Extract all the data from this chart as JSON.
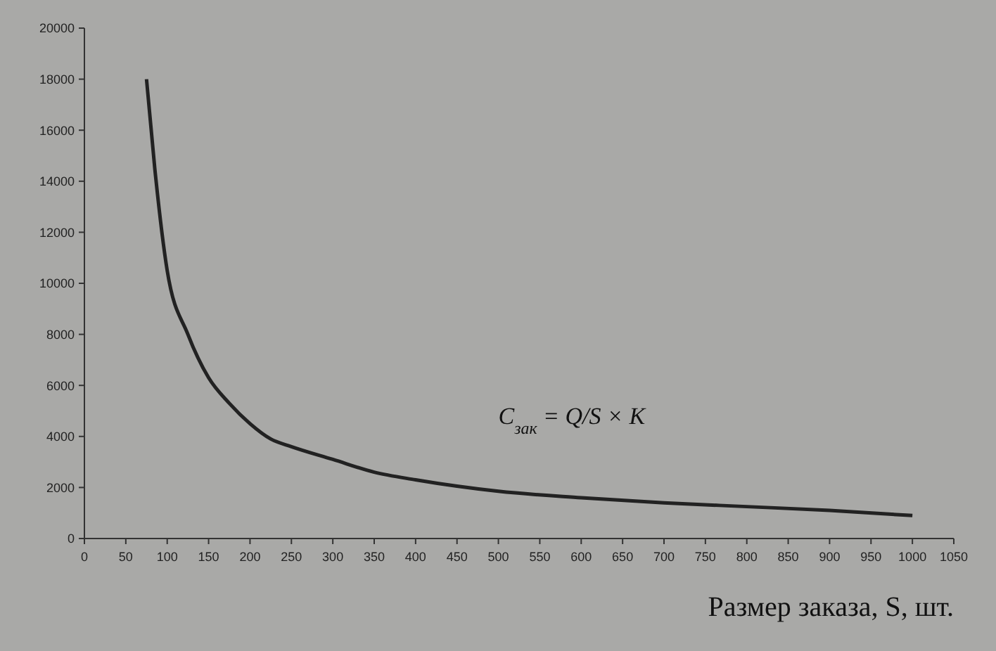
{
  "chart_data": {
    "type": "line",
    "xlabel": "Размер заказа, S, шт.",
    "annotations": [
      "C$_{зак}$ = Q/S × K"
    ],
    "x": [
      75,
      85,
      100,
      125,
      150,
      175,
      200,
      225,
      250,
      300,
      350,
      400,
      450,
      500,
      600,
      700,
      800,
      900,
      1000
    ],
    "series": [
      {
        "color": "#222222",
        "values": [
          18000,
          14500,
          10500,
          8000,
          6300,
          5300,
          4500,
          3900,
          3600,
          3100,
          2600,
          2300,
          2050,
          1850,
          1600,
          1400,
          1250,
          1100,
          900
        ]
      }
    ],
    "xlim": [
      0,
      1050
    ],
    "xticks": [
      0,
      50,
      100,
      150,
      200,
      250,
      300,
      350,
      400,
      450,
      500,
      550,
      600,
      650,
      700,
      750,
      800,
      850,
      900,
      950,
      1000,
      1050
    ],
    "ylim": [
      0,
      20000
    ],
    "yticks": [
      0,
      2000,
      4000,
      6000,
      8000,
      10000,
      12000,
      14000,
      16000,
      18000,
      20000
    ],
    "grid": false,
    "marker": "none",
    "line_style": "solid"
  }
}
